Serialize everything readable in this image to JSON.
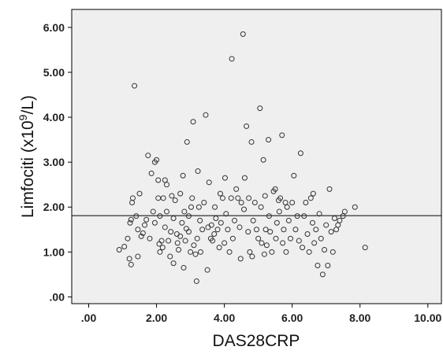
{
  "chart_data": {
    "type": "scatter",
    "xlabel": "DAS28CRP",
    "ylabel_main": "Limfociti (x10",
    "ylabel_sup": "9",
    "ylabel_tail": "/L)",
    "xlim": [
      -0.5,
      10.4
    ],
    "ylim": [
      -0.15,
      6.4
    ],
    "x_ticks": [
      0,
      2,
      4,
      6,
      8,
      10
    ],
    "x_tick_labels": [
      ".00",
      "2.00",
      "4.00",
      "6.00",
      "8.00",
      "10.00"
    ],
    "y_ticks": [
      0,
      1,
      2,
      3,
      4,
      5,
      6
    ],
    "y_tick_labels": [
      ".00",
      "1.00",
      "2.00",
      "3.00",
      "4.00",
      "5.00",
      "6.00"
    ],
    "grid": false,
    "fit_line": {
      "type": "horizontal",
      "y": 1.81,
      "color": "#000000"
    },
    "colors": {
      "plot_background": "#efefef",
      "marker_stroke": "#333333",
      "axis": "#000000"
    },
    "points": [
      [
        0.9,
        1.05
      ],
      [
        1.05,
        1.12
      ],
      [
        1.15,
        1.3
      ],
      [
        1.2,
        0.85
      ],
      [
        1.25,
        0.72
      ],
      [
        1.22,
        1.65
      ],
      [
        1.25,
        1.72
      ],
      [
        1.28,
        2.1
      ],
      [
        1.3,
        2.2
      ],
      [
        1.35,
        4.7
      ],
      [
        1.4,
        1.8
      ],
      [
        1.45,
        1.5
      ],
      [
        1.45,
        0.9
      ],
      [
        1.5,
        2.3
      ],
      [
        1.55,
        1.35
      ],
      [
        1.6,
        1.42
      ],
      [
        1.65,
        1.6
      ],
      [
        1.7,
        1.72
      ],
      [
        1.75,
        3.15
      ],
      [
        1.8,
        1.3
      ],
      [
        1.85,
        2.75
      ],
      [
        1.9,
        1.9
      ],
      [
        1.95,
        1.65
      ],
      [
        1.95,
        3.0
      ],
      [
        2.0,
        3.05
      ],
      [
        2.05,
        2.6
      ],
      [
        2.05,
        2.2
      ],
      [
        2.08,
        1.18
      ],
      [
        2.1,
        1.8
      ],
      [
        2.1,
        1.0
      ],
      [
        2.15,
        1.25
      ],
      [
        2.18,
        1.1
      ],
      [
        2.2,
        2.2
      ],
      [
        2.25,
        2.6
      ],
      [
        2.25,
        1.55
      ],
      [
        2.3,
        2.5
      ],
      [
        2.3,
        1.9
      ],
      [
        2.35,
        1.25
      ],
      [
        2.4,
        0.9
      ],
      [
        2.42,
        1.45
      ],
      [
        2.45,
        2.25
      ],
      [
        2.5,
        1.75
      ],
      [
        2.5,
        0.75
      ],
      [
        2.55,
        2.15
      ],
      [
        2.6,
        1.4
      ],
      [
        2.62,
        1.2
      ],
      [
        2.65,
        1.05
      ],
      [
        2.7,
        2.3
      ],
      [
        2.7,
        1.35
      ],
      [
        2.75,
        1.65
      ],
      [
        2.78,
        2.7
      ],
      [
        2.8,
        0.65
      ],
      [
        2.82,
        1.9
      ],
      [
        2.85,
        1.25
      ],
      [
        2.88,
        1.52
      ],
      [
        2.9,
        3.45
      ],
      [
        2.95,
        1.8
      ],
      [
        2.95,
        1.45
      ],
      [
        3.0,
        1.0
      ],
      [
        3.02,
        2.0
      ],
      [
        3.05,
        2.2
      ],
      [
        3.08,
        3.9
      ],
      [
        3.1,
        1.15
      ],
      [
        3.15,
        0.95
      ],
      [
        3.18,
        0.35
      ],
      [
        3.2,
        1.3
      ],
      [
        3.22,
        2.8
      ],
      [
        3.25,
        2.0
      ],
      [
        3.28,
        1.7
      ],
      [
        3.3,
        1.0
      ],
      [
        3.35,
        1.5
      ],
      [
        3.4,
        2.1
      ],
      [
        3.45,
        4.05
      ],
      [
        3.5,
        0.6
      ],
      [
        3.52,
        1.55
      ],
      [
        3.55,
        2.55
      ],
      [
        3.6,
        1.3
      ],
      [
        3.62,
        1.6
      ],
      [
        3.65,
        1.25
      ],
      [
        3.7,
        1.4
      ],
      [
        3.72,
        2.0
      ],
      [
        3.75,
        1.75
      ],
      [
        3.8,
        1.5
      ],
      [
        3.85,
        1.1
      ],
      [
        3.88,
        2.3
      ],
      [
        3.9,
        1.65
      ],
      [
        3.95,
        2.2
      ],
      [
        4.0,
        1.2
      ],
      [
        4.02,
        2.65
      ],
      [
        4.05,
        1.85
      ],
      [
        4.1,
        1.5
      ],
      [
        4.15,
        1.0
      ],
      [
        4.2,
        2.2
      ],
      [
        4.22,
        5.3
      ],
      [
        4.25,
        1.3
      ],
      [
        4.3,
        1.7
      ],
      [
        4.35,
        2.4
      ],
      [
        4.4,
        2.2
      ],
      [
        4.45,
        1.55
      ],
      [
        4.48,
        0.85
      ],
      [
        4.5,
        2.1
      ],
      [
        4.55,
        5.85
      ],
      [
        4.58,
        1.95
      ],
      [
        4.6,
        2.65
      ],
      [
        4.65,
        3.8
      ],
      [
        4.7,
        1.45
      ],
      [
        4.72,
        2.2
      ],
      [
        4.75,
        1.0
      ],
      [
        4.8,
        3.45
      ],
      [
        4.82,
        0.9
      ],
      [
        4.85,
        1.7
      ],
      [
        4.9,
        2.1
      ],
      [
        4.95,
        1.5
      ],
      [
        5.0,
        1.3
      ],
      [
        5.05,
        4.2
      ],
      [
        5.08,
        2.0
      ],
      [
        5.1,
        1.2
      ],
      [
        5.15,
        3.05
      ],
      [
        5.18,
        0.95
      ],
      [
        5.2,
        2.25
      ],
      [
        5.22,
        1.5
      ],
      [
        5.25,
        1.15
      ],
      [
        5.3,
        3.5
      ],
      [
        5.32,
        1.8
      ],
      [
        5.35,
        1.45
      ],
      [
        5.4,
        1.0
      ],
      [
        5.45,
        2.35
      ],
      [
        5.5,
        2.4
      ],
      [
        5.52,
        1.3
      ],
      [
        5.55,
        1.65
      ],
      [
        5.6,
        2.15
      ],
      [
        5.62,
        1.9
      ],
      [
        5.65,
        2.2
      ],
      [
        5.7,
        3.6
      ],
      [
        5.72,
        1.2
      ],
      [
        5.75,
        1.5
      ],
      [
        5.8,
        2.1
      ],
      [
        5.82,
        1.0
      ],
      [
        5.85,
        2.0
      ],
      [
        5.9,
        1.7
      ],
      [
        5.95,
        1.3
      ],
      [
        6.0,
        2.1
      ],
      [
        6.05,
        2.7
      ],
      [
        6.1,
        1.5
      ],
      [
        6.15,
        1.8
      ],
      [
        6.2,
        1.25
      ],
      [
        6.25,
        3.2
      ],
      [
        6.3,
        1.1
      ],
      [
        6.35,
        1.8
      ],
      [
        6.4,
        2.1
      ],
      [
        6.45,
        1.4
      ],
      [
        6.5,
        1.0
      ],
      [
        6.55,
        2.2
      ],
      [
        6.6,
        1.65
      ],
      [
        6.62,
        2.3
      ],
      [
        6.65,
        1.2
      ],
      [
        6.7,
        1.5
      ],
      [
        6.75,
        0.7
      ],
      [
        6.8,
        1.85
      ],
      [
        6.85,
        1.3
      ],
      [
        6.9,
        0.5
      ],
      [
        6.95,
        1.05
      ],
      [
        7.0,
        1.6
      ],
      [
        7.05,
        0.7
      ],
      [
        7.1,
        2.4
      ],
      [
        7.15,
        1.45
      ],
      [
        7.2,
        1.0
      ],
      [
        7.25,
        1.75
      ],
      [
        7.3,
        1.5
      ],
      [
        7.35,
        1.6
      ],
      [
        7.4,
        1.7
      ],
      [
        7.5,
        1.8
      ],
      [
        7.55,
        1.9
      ],
      [
        7.85,
        2.0
      ],
      [
        8.15,
        1.1
      ]
    ]
  }
}
